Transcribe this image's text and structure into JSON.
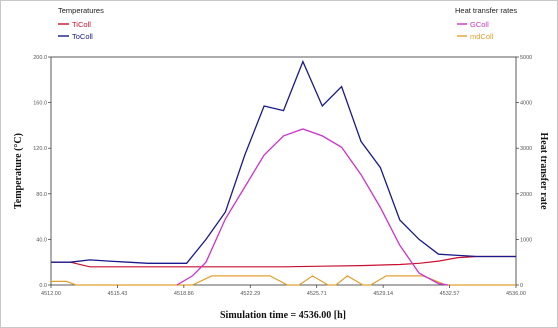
{
  "chart_data": {
    "type": "line",
    "left_legend_title": "Temperatures",
    "right_legend_title": "Heat transfer rates",
    "xlabel": "Simulation time = 4536.00 [h]",
    "ylabel_left": "Temperature (°C)",
    "ylabel_right": "Heat transfer rate",
    "xlim": [
      4512.0,
      4536.0
    ],
    "ylim_left": [
      0,
      200
    ],
    "ylim_right": [
      0,
      5000
    ],
    "x_ticks": [
      "4512.00",
      "4515.43",
      "4518.86",
      "4522.29",
      "4525.71",
      "4529.14",
      "4532.57",
      "4536.00"
    ],
    "y_left_ticks": [
      "0.0",
      "40.0",
      "80.0",
      "120.0",
      "160.0",
      "200.0"
    ],
    "y_right_ticks": [
      "0",
      "1000",
      "2000",
      "3000",
      "4000",
      "5000"
    ],
    "grid": false,
    "series": [
      {
        "name": "TiColl",
        "axis": "left",
        "color": "#c8102e",
        "points": [
          [
            4512,
            20
          ],
          [
            4513,
            20
          ],
          [
            4514,
            16
          ],
          [
            4516,
            16
          ],
          [
            4518,
            16
          ],
          [
            4520,
            16
          ],
          [
            4522,
            16
          ],
          [
            4524,
            16
          ],
          [
            4526,
            16.5
          ],
          [
            4528,
            17
          ],
          [
            4530,
            18
          ],
          [
            4531,
            19
          ],
          [
            4532,
            21
          ],
          [
            4533,
            24
          ],
          [
            4534,
            25
          ],
          [
            4535,
            25
          ],
          [
            4536,
            25
          ]
        ]
      },
      {
        "name": "ToColl",
        "axis": "left",
        "color": "#1a1a8c",
        "points": [
          [
            4512,
            20
          ],
          [
            4513,
            20
          ],
          [
            4514,
            22
          ],
          [
            4515,
            21
          ],
          [
            4516,
            20
          ],
          [
            4517,
            19
          ],
          [
            4518,
            19
          ],
          [
            4519,
            19
          ],
          [
            4520,
            40
          ],
          [
            4521,
            64
          ],
          [
            4522,
            114
          ],
          [
            4523,
            157
          ],
          [
            4524,
            153
          ],
          [
            4525,
            196
          ],
          [
            4526,
            157
          ],
          [
            4527,
            174
          ],
          [
            4528,
            126
          ],
          [
            4529,
            103
          ],
          [
            4530,
            57
          ],
          [
            4531,
            40
          ],
          [
            4532,
            27
          ],
          [
            4533,
            26
          ],
          [
            4534,
            25
          ],
          [
            4535,
            25
          ],
          [
            4536,
            25
          ]
        ]
      },
      {
        "name": "GColl",
        "axis": "right",
        "color": "#cc33cc",
        "points": [
          [
            4518.5,
            0
          ],
          [
            4519.3,
            200
          ],
          [
            4520,
            500
          ],
          [
            4521,
            1450
          ],
          [
            4522,
            2150
          ],
          [
            4523,
            2850
          ],
          [
            4524,
            3270
          ],
          [
            4525,
            3420
          ],
          [
            4526,
            3270
          ],
          [
            4527,
            3020
          ],
          [
            4528,
            2420
          ],
          [
            4529,
            1700
          ],
          [
            4530,
            870
          ],
          [
            4531,
            260
          ],
          [
            4532,
            30
          ],
          [
            4532.5,
            0
          ]
        ]
      },
      {
        "name": "mdColl",
        "axis": "right",
        "color": "#e0a030",
        "points": [
          [
            4512,
            80
          ],
          [
            4512.8,
            80
          ],
          [
            4513.3,
            0
          ],
          [
            4519.3,
            0
          ],
          [
            4520.3,
            200
          ],
          [
            4523.3,
            200
          ],
          [
            4524.2,
            0
          ],
          [
            4524.8,
            0
          ],
          [
            4525.5,
            200
          ],
          [
            4526.3,
            0
          ],
          [
            4526.7,
            0
          ],
          [
            4527.3,
            200
          ],
          [
            4528.1,
            0
          ],
          [
            4528.5,
            0
          ],
          [
            4529.3,
            200
          ],
          [
            4531.2,
            200
          ],
          [
            4532.4,
            0
          ],
          [
            4536,
            0
          ]
        ]
      }
    ]
  }
}
